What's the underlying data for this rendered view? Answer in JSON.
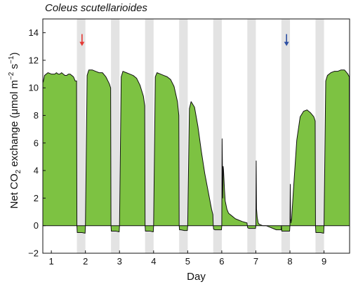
{
  "chart_data": {
    "type": "area",
    "title": "Coleus scutellarioides",
    "xlabel": "Day",
    "ylabel_parts": [
      "Net CO",
      "2",
      " exchange (μmol m",
      "−2",
      " s",
      "−1",
      ")"
    ],
    "xlim": [
      0.75,
      9.75
    ],
    "ylim": [
      -2,
      15
    ],
    "x_ticks": [
      1,
      2,
      3,
      4,
      5,
      6,
      7,
      8,
      9
    ],
    "y_ticks": [
      -2,
      0,
      2,
      4,
      6,
      8,
      10,
      12,
      14
    ],
    "night_periods": [
      [
        1.75,
        2.0
      ],
      [
        2.75,
        3.0
      ],
      [
        3.75,
        4.0
      ],
      [
        4.75,
        5.0
      ],
      [
        5.75,
        6.0
      ],
      [
        6.75,
        7.0
      ],
      [
        7.75,
        8.0
      ],
      [
        8.75,
        9.0
      ],
      [
        9.75,
        10.0
      ]
    ],
    "night_shading_color": "#e3e3e3",
    "fill_color": "#7dc242",
    "line_color": "#111111",
    "markers": [
      {
        "day": 1.9,
        "y": 13.9,
        "direction": "down",
        "color": "#e53935"
      },
      {
        "day": 7.9,
        "y": 13.9,
        "direction": "down",
        "color": "#2d4fa3"
      }
    ],
    "series": [
      {
        "x": [
          0.76,
          0.8,
          0.9,
          1.0,
          1.1,
          1.15,
          1.2,
          1.25,
          1.3,
          1.35,
          1.4,
          1.45,
          1.5,
          1.55,
          1.6,
          1.65,
          1.7,
          1.74,
          1.75,
          1.76,
          1.8,
          1.9,
          1.99,
          2.0,
          2.05,
          2.1,
          2.2,
          2.3,
          2.4,
          2.5,
          2.6,
          2.7,
          2.74,
          2.75,
          2.76,
          2.8,
          2.9,
          2.99,
          3.0,
          3.05,
          3.1,
          3.2,
          3.3,
          3.4,
          3.5,
          3.6,
          3.7,
          3.74,
          3.75,
          3.76,
          3.8,
          3.9,
          3.99,
          4.0,
          4.05,
          4.1,
          4.2,
          4.3,
          4.4,
          4.5,
          4.6,
          4.7,
          4.74,
          4.75,
          4.76,
          4.8,
          4.9,
          4.99,
          5.0,
          5.05,
          5.1,
          5.2,
          5.3,
          5.4,
          5.5,
          5.6,
          5.7,
          5.74,
          5.75,
          5.76,
          5.8,
          5.9,
          5.99,
          6.0,
          6.01,
          6.03,
          6.04,
          6.05,
          6.06,
          6.08,
          6.1,
          6.15,
          6.2,
          6.3,
          6.4,
          6.5,
          6.6,
          6.74,
          6.75,
          6.76,
          6.8,
          6.9,
          6.99,
          7.0,
          7.01,
          7.02,
          7.04,
          7.07,
          7.1,
          7.2,
          7.3,
          7.4,
          7.5,
          7.6,
          7.7,
          7.74,
          7.75,
          7.76,
          7.8,
          7.9,
          7.99,
          8.0,
          8.01,
          8.02,
          8.03,
          8.05,
          8.1,
          8.2,
          8.3,
          8.4,
          8.5,
          8.6,
          8.7,
          8.74,
          8.75,
          8.76,
          8.8,
          8.9,
          8.99,
          9.0,
          9.05,
          9.1,
          9.2,
          9.3,
          9.4,
          9.5,
          9.6,
          9.7,
          9.74,
          9.75
        ],
        "y": [
          10.4,
          10.9,
          11.1,
          11.0,
          11.0,
          11.1,
          11.0,
          11.0,
          11.1,
          11.0,
          10.9,
          10.9,
          11.0,
          11.0,
          10.9,
          10.8,
          10.5,
          10.5,
          0.0,
          -0.5,
          -0.5,
          -0.5,
          -0.55,
          0.0,
          10.9,
          11.3,
          11.3,
          11.2,
          11.1,
          11.1,
          10.8,
          10.3,
          10.0,
          0.0,
          -0.4,
          -0.4,
          -0.4,
          -0.45,
          0.0,
          10.8,
          11.2,
          11.1,
          11.0,
          10.9,
          10.7,
          10.2,
          9.4,
          8.7,
          0.0,
          -0.4,
          -0.4,
          -0.4,
          -0.45,
          0.0,
          10.8,
          11.1,
          11.0,
          10.9,
          10.8,
          10.6,
          10.1,
          9.0,
          8.0,
          0.0,
          -0.3,
          -0.3,
          -0.35,
          -0.35,
          0.0,
          8.5,
          9.0,
          8.6,
          7.2,
          5.4,
          3.8,
          2.5,
          1.2,
          0.8,
          0.0,
          -0.25,
          -0.3,
          -0.3,
          -0.3,
          0.0,
          6.3,
          2.0,
          4.3,
          4.1,
          3.6,
          2.6,
          1.8,
          1.2,
          0.9,
          0.7,
          0.5,
          0.4,
          0.3,
          0.2,
          0.0,
          -0.15,
          -0.2,
          -0.2,
          -0.2,
          0.0,
          4.7,
          1.2,
          0.6,
          0.2,
          0.1,
          0.0,
          0.0,
          -0.1,
          -0.2,
          -0.3,
          -0.3,
          -0.3,
          0.0,
          -0.4,
          -0.4,
          -0.4,
          -0.4,
          0.0,
          3.0,
          0.5,
          0.2,
          0.5,
          2.5,
          6.2,
          7.9,
          8.3,
          8.4,
          8.2,
          7.9,
          7.6,
          0.0,
          -0.5,
          -0.5,
          -0.5,
          -0.55,
          0.0,
          10.5,
          10.9,
          11.1,
          11.2,
          11.2,
          11.3,
          11.3,
          11.0,
          10.8,
          0.0
        ]
      }
    ]
  }
}
